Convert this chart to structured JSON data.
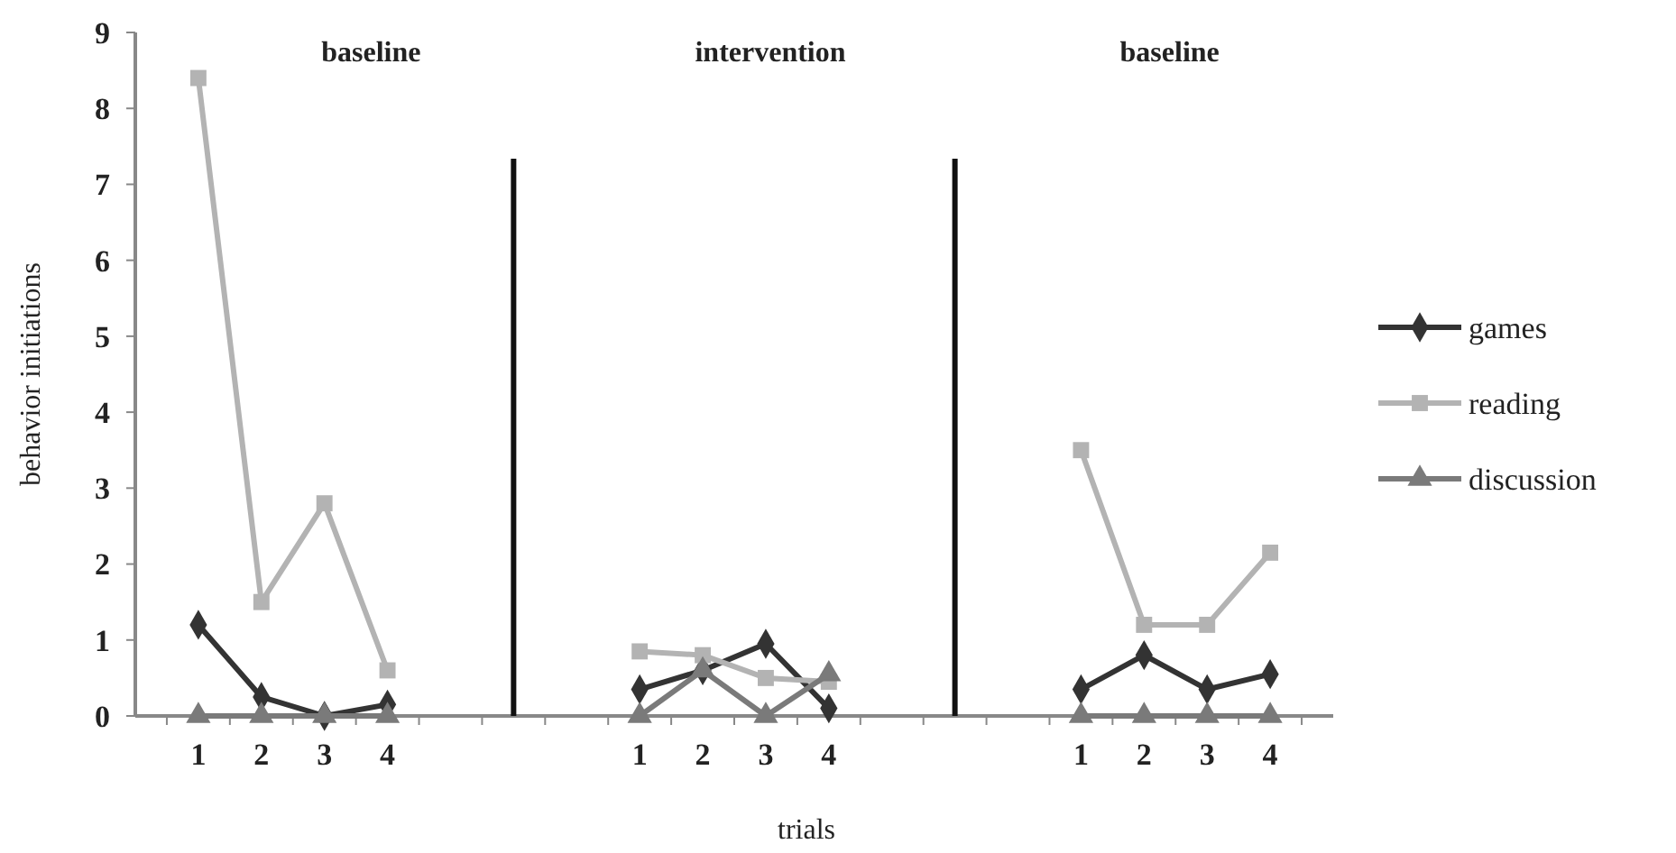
{
  "chart_data": {
    "type": "line",
    "xlabel": "trials",
    "ylabel": "behavior initiations",
    "categories": [
      "1",
      "2",
      "3",
      "4",
      null,
      null,
      null,
      "1",
      "2",
      "3",
      "4",
      null,
      null,
      null,
      "1",
      "2",
      "3",
      "4"
    ],
    "series": [
      {
        "name": "games",
        "color": "#333333",
        "marker": "diamond",
        "values": [
          1.2,
          0.25,
          0,
          0.15,
          null,
          null,
          null,
          0.35,
          0.6,
          0.95,
          0.1,
          null,
          null,
          null,
          0.35,
          0.8,
          0.35,
          0.55
        ]
      },
      {
        "name": "reading",
        "color": "#b3b3b3",
        "marker": "square",
        "values": [
          8.4,
          1.5,
          2.8,
          0.6,
          null,
          null,
          null,
          0.85,
          0.8,
          0.5,
          0.45,
          null,
          null,
          null,
          3.5,
          1.2,
          1.2,
          2.15
        ]
      },
      {
        "name": "discussion",
        "color": "#7a7a7a",
        "marker": "triangle",
        "values": [
          0,
          0,
          0,
          0,
          null,
          null,
          null,
          0,
          0.6,
          0,
          0.55,
          null,
          null,
          null,
          0,
          0,
          0,
          0
        ]
      }
    ],
    "ylim": [
      0,
      9
    ],
    "yticks": [
      0,
      1,
      2,
      3,
      4,
      5,
      6,
      7,
      8,
      9
    ],
    "annotations": [
      "baseline",
      "intervention",
      "baseline"
    ],
    "legend": "right"
  }
}
